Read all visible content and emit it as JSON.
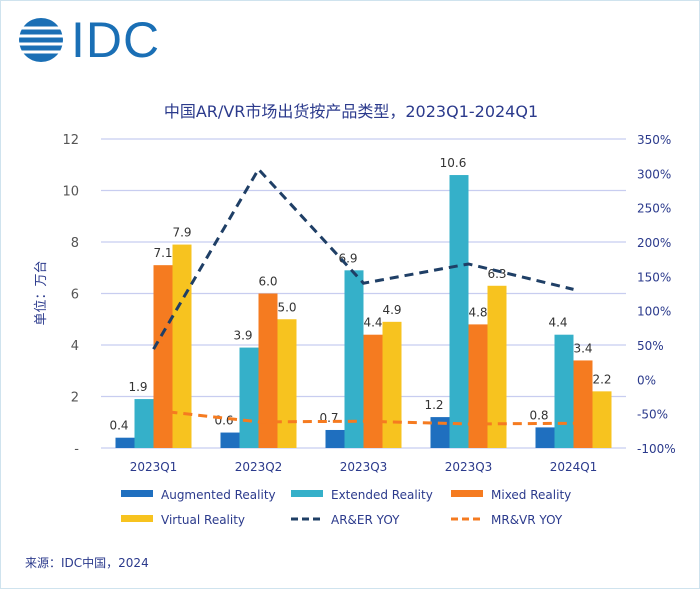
{
  "logo": {
    "text": "IDC"
  },
  "chart_data": {
    "type": "bar",
    "title": "中国AR/VR市场出货按产品类型，2023Q1-2024Q1",
    "ylabel": "单位：万台",
    "categories": [
      "2023Q1",
      "2023Q2",
      "2023Q3",
      "2023Q3",
      "2024Q1"
    ],
    "ylim": [
      0,
      12
    ],
    "yticks": [
      "-",
      "2",
      "4",
      "6",
      "8",
      "10",
      "12"
    ],
    "y2lim": [
      -100,
      350
    ],
    "y2ticks": [
      "-100%",
      "-50%",
      "0%",
      "50%",
      "100%",
      "150%",
      "200%",
      "250%",
      "300%",
      "350%"
    ],
    "grid": true,
    "legend_placement": "bottom",
    "series": [
      {
        "name": "Augmented Reality",
        "type": "bar",
        "color": "#1f6fbf",
        "values": [
          0.4,
          0.6,
          0.7,
          1.2,
          0.8
        ],
        "labels": [
          "0.4",
          "0.6",
          "0.7",
          "1.2",
          "0.8"
        ]
      },
      {
        "name": "Extended Reality",
        "type": "bar",
        "color": "#35b0c9",
        "values": [
          1.9,
          3.9,
          6.9,
          10.6,
          4.4
        ],
        "labels": [
          "1.9",
          "3.9",
          "6.9",
          "10.6",
          "4.4"
        ]
      },
      {
        "name": "Mixed Reality",
        "type": "bar",
        "color": "#f57b20",
        "values": [
          7.1,
          6.0,
          4.4,
          4.8,
          3.4
        ],
        "labels": [
          "7.1",
          "6.0",
          "4.4",
          "4.8",
          "3.4"
        ]
      },
      {
        "name": "Virtual Reality",
        "type": "bar",
        "color": "#f7c31f",
        "values": [
          7.9,
          5.0,
          4.9,
          6.3,
          2.2
        ],
        "labels": [
          "7.9",
          "5.0",
          "4.9",
          "6.3",
          "2.2"
        ]
      },
      {
        "name": "AR&ER YOY",
        "type": "line",
        "axis": "right",
        "dash": true,
        "color": "#1f3f66",
        "values": [
          44,
          306,
          140,
          168,
          131
        ]
      },
      {
        "name": "MR&VR YOY",
        "type": "line",
        "axis": "right",
        "dash": true,
        "color": "#f57b20",
        "values": [
          -45,
          -62,
          -61,
          -65,
          -64
        ]
      }
    ]
  },
  "source": "来源：IDC中国，2024"
}
